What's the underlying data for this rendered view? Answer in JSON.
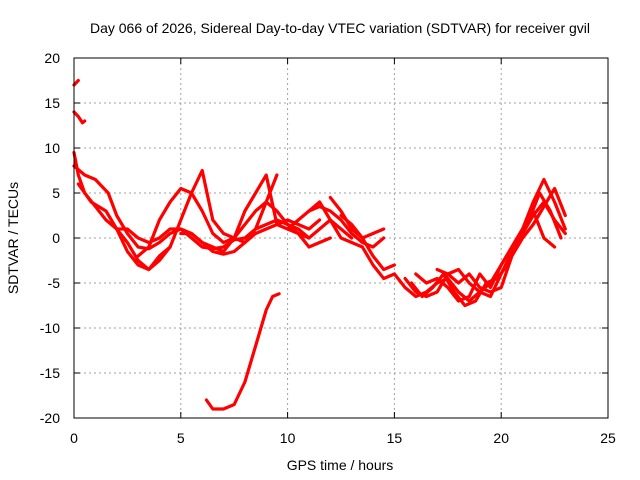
{
  "chart_data": {
    "type": "line",
    "title": "Day 066 of 2026, Sidereal Day-to-day VTEC variation (SDTVAR) for receiver gvil",
    "xlabel": "GPS time / hours",
    "ylabel": "SDTVAR / TECUs",
    "xlim": [
      0,
      25
    ],
    "ylim": [
      -20,
      20
    ],
    "xticks": [
      0,
      5,
      10,
      15,
      20,
      25
    ],
    "yticks": [
      -20,
      -15,
      -10,
      -5,
      0,
      5,
      10,
      15,
      20
    ],
    "xtick_labels": [
      "0",
      "5",
      "10",
      "15",
      "20",
      "25"
    ],
    "ytick_labels": [
      "-20",
      "-15",
      "-10",
      "-5",
      "0",
      "5",
      "10",
      "15",
      "20"
    ],
    "grid": true,
    "legend": "none",
    "color": "#ff0000",
    "series": [
      {
        "name": "s1",
        "x": [
          0,
          0.2
        ],
        "y": [
          17,
          17.5
        ]
      },
      {
        "name": "s2",
        "x": [
          0,
          0.2,
          0.4,
          0.5
        ],
        "y": [
          14,
          13.5,
          12.8,
          13
        ]
      },
      {
        "name": "s3",
        "x": [
          0,
          0.2,
          0.5,
          1,
          1.5,
          2,
          2.5,
          3,
          3.5,
          4,
          4.5
        ],
        "y": [
          9.5,
          7,
          5,
          3.5,
          2,
          1,
          -0.5,
          -2.5,
          -3.5,
          -2,
          -1
        ]
      },
      {
        "name": "s4",
        "x": [
          0,
          0.5,
          1,
          1.6,
          2,
          2.5,
          3,
          3.5,
          4,
          4.5,
          5,
          5.5,
          6,
          6.5,
          7,
          7.5,
          8,
          8.5,
          9,
          9.5
        ],
        "y": [
          8,
          7,
          6.5,
          5,
          2.5,
          0.5,
          -1,
          -1.2,
          -0.5,
          0.5,
          1,
          0.5,
          -0.5,
          -1.5,
          -1.8,
          -1.5,
          -0.5,
          1,
          4,
          7
        ]
      },
      {
        "name": "s5",
        "x": [
          0.2,
          0.8,
          1.5,
          2,
          2.5,
          3,
          3.5,
          4,
          4.5,
          5,
          5.5,
          6,
          6.5,
          7,
          7.5,
          8,
          8.5,
          9,
          9.5,
          10,
          10.5,
          11,
          11.5
        ],
        "y": [
          6,
          4,
          3,
          1,
          -1.5,
          -3,
          -3.5,
          -2.5,
          -1,
          2,
          5,
          7.5,
          2,
          0.5,
          0,
          -0.5,
          0.5,
          1,
          1.5,
          2,
          1.5,
          1,
          2
        ]
      },
      {
        "name": "s6",
        "x": [
          2,
          2.5,
          3,
          3.5,
          4,
          4.5,
          5,
          5.5,
          6,
          6.5,
          7,
          7.5,
          8,
          8.5,
          9,
          9.5,
          10,
          10.5,
          11
        ],
        "y": [
          1,
          1,
          0,
          -0.5,
          0,
          1,
          1,
          0,
          -1,
          -1.2,
          -1,
          -0.2,
          0,
          1,
          1.5,
          2,
          1.5,
          1,
          0
        ]
      },
      {
        "name": "s7",
        "x": [
          3,
          3.5,
          4,
          4.5,
          5,
          5.5,
          6,
          6.5,
          7,
          7.5,
          8,
          8.5,
          9,
          9.5,
          10,
          10.5,
          11,
          11.5,
          12
        ],
        "y": [
          -2,
          -1,
          2,
          4,
          5.5,
          5,
          3,
          0.5,
          -0.5,
          0,
          1.5,
          3,
          4,
          3,
          1.5,
          0.5,
          -1,
          -0.5,
          0
        ]
      },
      {
        "name": "s8",
        "x": [
          5,
          5.5,
          6,
          6.5,
          7,
          7.5,
          8,
          8.5,
          9,
          9.5,
          10,
          10.5,
          11,
          11.5,
          12,
          12.5,
          13
        ],
        "y": [
          0.5,
          0.5,
          -0.5,
          -1,
          -1.5,
          0,
          3,
          5,
          7,
          1.5,
          1,
          0.5,
          0,
          1,
          2,
          1,
          0
        ]
      },
      {
        "name": "s9",
        "x": [
          6.2,
          6.5,
          7,
          7.5,
          8,
          8.5,
          9,
          9.3,
          9.6
        ],
        "y": [
          -18,
          -19,
          -19,
          -18.5,
          -16,
          -12,
          -8,
          -6.5,
          -6.2
        ]
      },
      {
        "name": "s10",
        "x": [
          10,
          10.5,
          11,
          11.5,
          12,
          12.5,
          13,
          13.5,
          14,
          14.5
        ],
        "y": [
          1,
          2,
          3,
          3.5,
          3,
          2,
          0.5,
          -0.5,
          -1,
          0
        ]
      },
      {
        "name": "s11",
        "x": [
          11,
          11.5,
          12,
          12.5,
          13,
          13.5,
          14,
          14.5,
          15
        ],
        "y": [
          3,
          4,
          2,
          0,
          -0.5,
          -1,
          -3,
          -4.5,
          -4
        ]
      },
      {
        "name": "s12",
        "x": [
          12,
          12.5,
          13,
          13.5,
          14,
          14.5
        ],
        "y": [
          4.5,
          3,
          1,
          0,
          0.5,
          1
        ]
      },
      {
        "name": "s13",
        "x": [
          12.5,
          13,
          13.5,
          14,
          14.5,
          15
        ],
        "y": [
          2.5,
          1.5,
          0,
          -2,
          -3.5,
          -3
        ]
      },
      {
        "name": "s14",
        "x": [
          15,
          15.5,
          16,
          16.5,
          17,
          17.5,
          18,
          18.5,
          19,
          19.5,
          20,
          20.5,
          21,
          21.5,
          22,
          22.5,
          23
        ],
        "y": [
          -4,
          -5.5,
          -6.5,
          -6,
          -5,
          -4.5,
          -6,
          -7,
          -6,
          -5,
          -3,
          -1,
          1,
          4,
          6.5,
          4,
          1
        ]
      },
      {
        "name": "s15",
        "x": [
          15.5,
          16,
          16.5,
          17,
          17.5,
          18,
          18.5,
          19,
          19.5,
          20,
          20.5,
          21,
          21.5,
          22,
          22.5,
          23
        ],
        "y": [
          -4.5,
          -6,
          -6.5,
          -6,
          -4,
          -3.5,
          -5,
          -6,
          -6.5,
          -4,
          -1.5,
          0.5,
          2.5,
          4,
          2,
          0.5
        ]
      },
      {
        "name": "s16",
        "x": [
          15.8,
          16.3,
          16.8,
          17.3,
          17.8,
          18.3,
          18.8,
          19.3,
          19.8,
          20.3,
          20.8,
          21.3,
          21.8,
          22.3,
          22.8
        ],
        "y": [
          -5,
          -6.5,
          -5.5,
          -4,
          -6,
          -7.5,
          -7,
          -5,
          -4.5,
          -3,
          0,
          2,
          5,
          3,
          0
        ]
      },
      {
        "name": "s17",
        "x": [
          16,
          16.5,
          17,
          17.5,
          18,
          18.5,
          19,
          19.5,
          20,
          20.5,
          21,
          21.5,
          22,
          22.5
        ],
        "y": [
          -4,
          -5,
          -4.5,
          -5.5,
          -7,
          -6.5,
          -4,
          -5.5,
          -3,
          -1,
          1,
          3,
          0,
          -1
        ]
      },
      {
        "name": "s18",
        "x": [
          17,
          17.5,
          18,
          18.5,
          19,
          19.5,
          20,
          20.5,
          21,
          21.5,
          22,
          22.5,
          23
        ],
        "y": [
          -3.5,
          -4,
          -5,
          -4,
          -5.5,
          -6,
          -5.5,
          -2,
          0,
          1.5,
          3.5,
          5.5,
          2.5
        ]
      }
    ]
  }
}
